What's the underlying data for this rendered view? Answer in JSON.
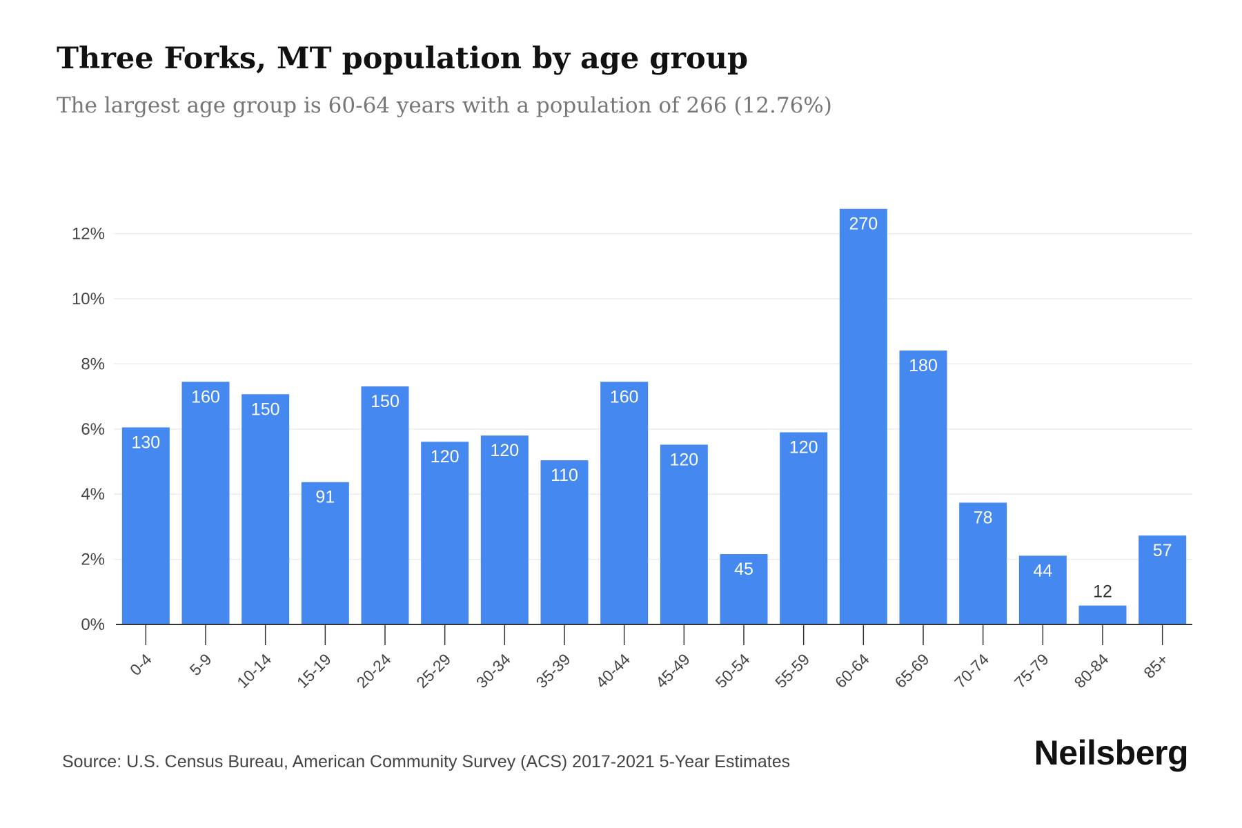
{
  "header": {
    "title": "Three Forks, MT population by age group",
    "subtitle": "The largest age group is 60-64 years with a population of 266 (12.76%)"
  },
  "footer": {
    "source": "Source: U.S. Census Bureau, American Community Survey (ACS) 2017-2021 5-Year Estimates",
    "brand": "Neilsberg"
  },
  "colors": {
    "bar": "#4488f0",
    "grid": "#ececec",
    "axis": "#333333",
    "tick_text": "#444444",
    "bar_label_inside": "#ffffff",
    "bar_label_outside": "#333333"
  },
  "chart_data": {
    "type": "bar",
    "categories": [
      "0-4",
      "5-9",
      "10-14",
      "15-19",
      "20-24",
      "25-29",
      "30-34",
      "35-39",
      "40-44",
      "45-49",
      "50-54",
      "55-59",
      "60-64",
      "65-69",
      "70-74",
      "75-79",
      "80-84",
      "85+"
    ],
    "values": [
      6.05,
      7.45,
      7.07,
      4.37,
      7.31,
      5.61,
      5.8,
      5.04,
      7.45,
      5.52,
      2.16,
      5.9,
      12.76,
      8.41,
      3.74,
      2.11,
      0.58,
      2.73
    ],
    "data_labels": [
      "130",
      "160",
      "150",
      "91",
      "150",
      "120",
      "120",
      "110",
      "160",
      "120",
      "45",
      "120",
      "270",
      "180",
      "78",
      "44",
      "12",
      "57"
    ],
    "y_ticks": [
      "0%",
      "2%",
      "4%",
      "6%",
      "8%",
      "10%",
      "12%"
    ],
    "y_tick_values": [
      0,
      2,
      4,
      6,
      8,
      10,
      12
    ],
    "ylim": [
      0,
      13.5
    ],
    "ylabel": "",
    "xlabel": "",
    "grid": true,
    "legend": "none"
  }
}
